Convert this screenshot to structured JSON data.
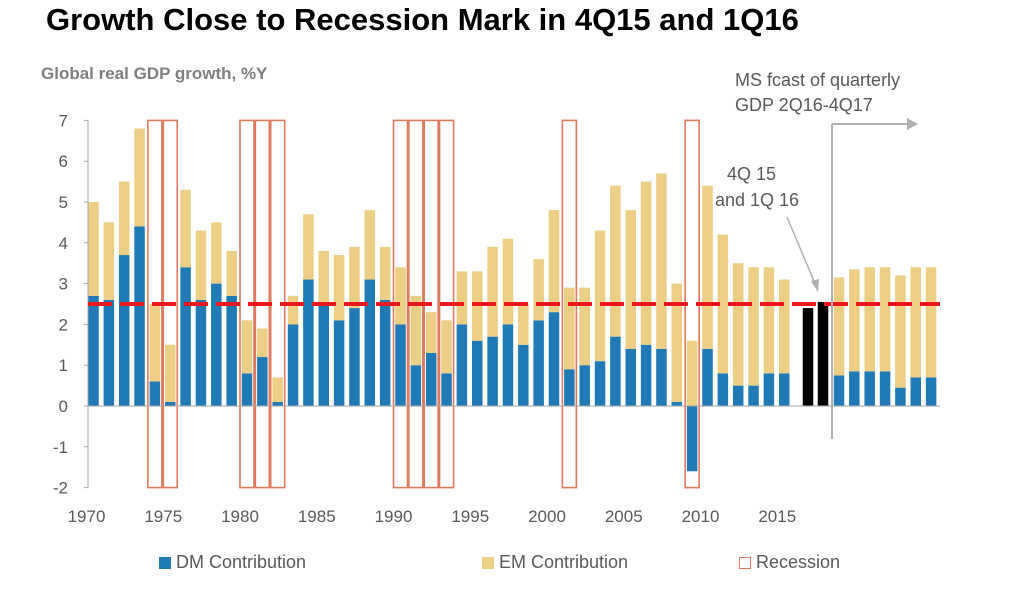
{
  "colors": {
    "dm": "#1f7ab5",
    "em": "#ecce85",
    "recession": "#e07a5f",
    "forecast_bar": "#000000",
    "mark_line": "#e8191c",
    "axis": "#a6a6a6",
    "arrow": "#b0b0b0"
  },
  "chart_data": {
    "type": "bar",
    "title": "Growth Close to Recession Mark in 4Q15 and 1Q16",
    "subtitle": "Global real GDP growth, %Y",
    "ylim": [
      -2,
      7
    ],
    "yticks": [
      -2,
      -1,
      0,
      1,
      2,
      3,
      4,
      5,
      6,
      7
    ],
    "xticks": [
      1970,
      1975,
      1980,
      1985,
      1990,
      1995,
      2000,
      2005,
      2010,
      2015
    ],
    "years": [
      1970,
      1971,
      1972,
      1973,
      1974,
      1975,
      1976,
      1977,
      1978,
      1979,
      1980,
      1981,
      1982,
      1983,
      1984,
      1985,
      1986,
      1987,
      1988,
      1989,
      1990,
      1991,
      1992,
      1993,
      1994,
      1995,
      1996,
      1997,
      1998,
      1999,
      2000,
      2001,
      2002,
      2003,
      2004,
      2005,
      2006,
      2007,
      2008,
      2009,
      2010,
      2011,
      2012,
      2013,
      2014,
      2015
    ],
    "series": [
      {
        "name": "DM Contribution",
        "values": [
          2.7,
          2.6,
          3.7,
          4.4,
          0.6,
          0.1,
          3.4,
          2.6,
          3.0,
          2.7,
          0.8,
          1.2,
          0.1,
          2.0,
          3.1,
          2.5,
          2.1,
          2.4,
          3.1,
          2.6,
          2.0,
          1.0,
          1.3,
          0.8,
          2.0,
          1.6,
          1.7,
          2.0,
          1.5,
          2.1,
          2.3,
          0.9,
          1.0,
          1.1,
          1.7,
          1.4,
          1.5,
          1.4,
          0.1,
          -1.6,
          1.4,
          0.8,
          0.5,
          0.5,
          0.8,
          0.8
        ]
      },
      {
        "name": "EM Contribution",
        "values": [
          2.3,
          1.9,
          1.8,
          2.4,
          1.9,
          1.4,
          1.9,
          1.7,
          1.5,
          1.1,
          1.3,
          0.7,
          0.6,
          0.7,
          1.6,
          1.3,
          1.6,
          1.5,
          1.7,
          1.3,
          1.4,
          1.7,
          1.0,
          1.3,
          1.3,
          1.7,
          2.2,
          2.1,
          1.0,
          1.5,
          2.5,
          2.0,
          1.9,
          3.2,
          3.7,
          3.4,
          4.0,
          4.3,
          2.9,
          1.6,
          4.0,
          3.4,
          3.0,
          2.9,
          2.6,
          2.3
        ]
      }
    ],
    "recession_name": "Recession",
    "recessions": [
      [
        1974,
        1975
      ],
      [
        1980,
        1982
      ],
      [
        1990,
        1993
      ],
      [
        2001,
        2001
      ],
      [
        2009,
        2009
      ]
    ],
    "highlight": {
      "labels": [
        "4Q 15",
        "1Q 16"
      ],
      "values": [
        2.4,
        2.55
      ]
    },
    "forecast": {
      "labels": [
        "2Q16",
        "3Q16",
        "4Q16",
        "1Q17",
        "2Q17",
        "3Q17",
        "4Q17"
      ],
      "dm": [
        0.75,
        0.85,
        0.85,
        0.85,
        0.45,
        0.7,
        0.7
      ],
      "em": [
        2.4,
        2.5,
        2.55,
        2.55,
        2.75,
        2.7,
        2.7
      ]
    },
    "recession_mark": 2.5,
    "legend_position": "bottom",
    "grid": false,
    "annotations": {
      "forecast_line1": "MS fcast of quarterly",
      "forecast_line2": "GDP 2Q16-4Q17",
      "point_line1": "4Q 15",
      "point_line2": "and 1Q 16"
    }
  }
}
